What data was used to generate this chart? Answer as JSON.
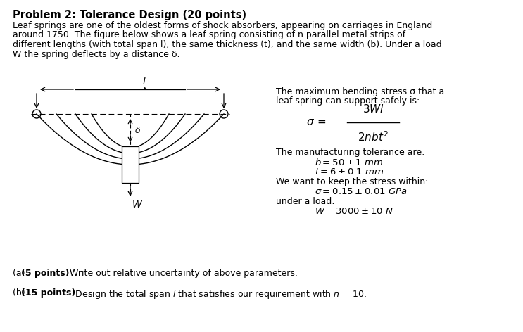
{
  "title": "Problem 2: Tolerance Design (20 points)",
  "body_line1": "Leaf springs are one of the oldest forms of shock absorbers, appearing on carriages in England",
  "body_line2": "around 1750. The figure below shows a leaf spring consisting of n parallel metal strips of",
  "body_line3": "different lengths (with total span l), the same thickness (t), and the same width (b). Under a load",
  "body_line4": "W the spring deflects by a distance δ.",
  "right_text_line1": "The maximum bending stress σ that a",
  "right_text_line2": "leaf-spring can support safely is:",
  "tolerance_header": "The manufacturing tolerance are:",
  "tol_b": "b = 50 ± 1 mm",
  "tol_t": "t = 6 ± 0.1 mm",
  "stress_header": "We want to keep the stress within:",
  "tol_sigma": "σ = 0.15 ± 0.01 GPa",
  "load_header": "under a load:",
  "tol_W": "W = 3000 ± 10 N",
  "bg_color": "#ffffff",
  "text_color": "#000000",
  "font_size_title": 10.5,
  "font_size_body": 9.0
}
